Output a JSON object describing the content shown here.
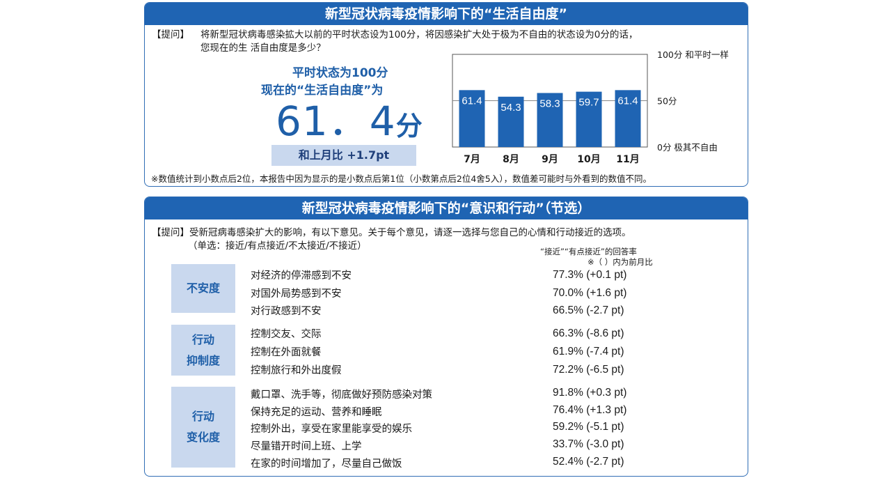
{
  "panel1": {
    "title": "新型冠状病毒疫情影响下的“生活自由度”",
    "question_label": "【提问】",
    "question_line1": "将新型冠状病毒感染拡大以前的平时状态设为100分，将因感染扩大处于极为不自由的状态设为0分的话，",
    "question_line2": "您现在的生  活自由度是多少？",
    "highlight_line1": "平时状态为100分",
    "highlight_line2": "现在的“生活自由度”为",
    "score_value": "61．4",
    "score_unit": "分",
    "diff_text": "和上月比 +1.7pt",
    "note": "※数值统计到小数点后2位，本报告中因为显示的是小数点后第1位（小数第点后2位4舍5入），数值差可能时与外看到的数值不同。"
  },
  "chart_data": {
    "type": "bar",
    "categories": [
      "7月",
      "8月",
      "9月",
      "10月",
      "11月"
    ],
    "values": [
      61.4,
      54.3,
      58.3,
      59.7,
      61.4
    ],
    "value_labels": [
      "61.4",
      "54.3",
      "58.3",
      "59.7",
      "61.4"
    ],
    "ylim": [
      0,
      100
    ],
    "y_ticks": [
      {
        "value": 100,
        "label": "100分  和平时一样"
      },
      {
        "value": 50,
        "label": "50分"
      },
      {
        "value": 0,
        "label": "0分  极其不自由"
      }
    ],
    "grid": "major at 50",
    "bar_color": "#1f64b3",
    "label_color": "#ffffff"
  },
  "panel2": {
    "title": "新型冠状病毒疫情影响下的“意识和行动”（节选）",
    "question_line1": "【提问】受新冠病毒感染扩大的影响，有以下意见。关于每个意见，请逐一选择与您自己的心情和行动接近的选项。",
    "question_line2": "（单选：接近/有点接近/不太接近/不接近）",
    "rate_header": "“接近”“有点接近”的回答率",
    "rate_subheader": "※（ ）内为前月比",
    "groups": [
      {
        "cat_line1": "不安度",
        "cat_line2": "",
        "items": [
          {
            "text": "对经济的停滞感到不安",
            "value": "77.3% (+0.1 pt)"
          },
          {
            "text": "对国外局势感到不安",
            "value": "70.0% (+1.6 pt)"
          },
          {
            "text": "对行政感到不安",
            "value": "66.5% (-2.7 pt)"
          }
        ]
      },
      {
        "cat_line1": "行动",
        "cat_line2": "抑制度",
        "items": [
          {
            "text": "控制交友、交际",
            "value": "66.3% (-8.6 pt)"
          },
          {
            "text": "控制在外面就餐",
            "value": "61.9% (-7.4 pt)"
          },
          {
            "text": "控制旅行和外出度假",
            "value": "72.2% (-6.5 pt)"
          }
        ]
      },
      {
        "cat_line1": "行动",
        "cat_line2": "变化度",
        "items": [
          {
            "text": "戴口罩、洗手等，彻底做好预防感染对策",
            "value": "91.8% (+0.3 pt)"
          },
          {
            "text": "保持充足的运动、营养和睡眠",
            "value": "76.4% (+1.3 pt)"
          },
          {
            "text": "控制外出，享受在家里能享受的娱乐",
            "value": "59.2% (-5.1 pt)"
          },
          {
            "text": "尽量错开时间上班、上学",
            "value": "33.7% (-3.0 pt)"
          },
          {
            "text": "在家的时间增加了，尽量自己做饭",
            "value": "52.4% (-2.7 pt)"
          }
        ]
      }
    ]
  }
}
